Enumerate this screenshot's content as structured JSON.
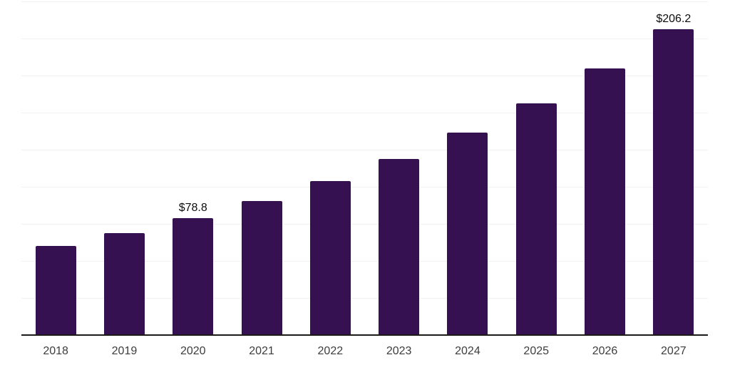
{
  "chart": {
    "background": "#ffffff"
  },
  "chart_data": {
    "type": "bar",
    "title": "",
    "xlabel": "",
    "ylabel": "",
    "categories": [
      "2018",
      "2019",
      "2020",
      "2021",
      "2022",
      "2023",
      "2024",
      "2025",
      "2026",
      "2027"
    ],
    "values": [
      60.1,
      68.9,
      78.8,
      90.4,
      103.7,
      118.9,
      136.4,
      156.4,
      179.8,
      206.2
    ],
    "value_labels": {
      "2020": "$78.8",
      "2027": "$206.2"
    },
    "ylim": [
      0,
      225
    ],
    "gridline_step": 25,
    "grid": "horizontal-only",
    "legend": "none",
    "colors": {
      "bar": "#351151",
      "axis_line": "#1a1a1a",
      "gridline": "#f1f1f1",
      "tick_label": "#3d3d3d",
      "value_label": "#0d0d0d"
    }
  }
}
